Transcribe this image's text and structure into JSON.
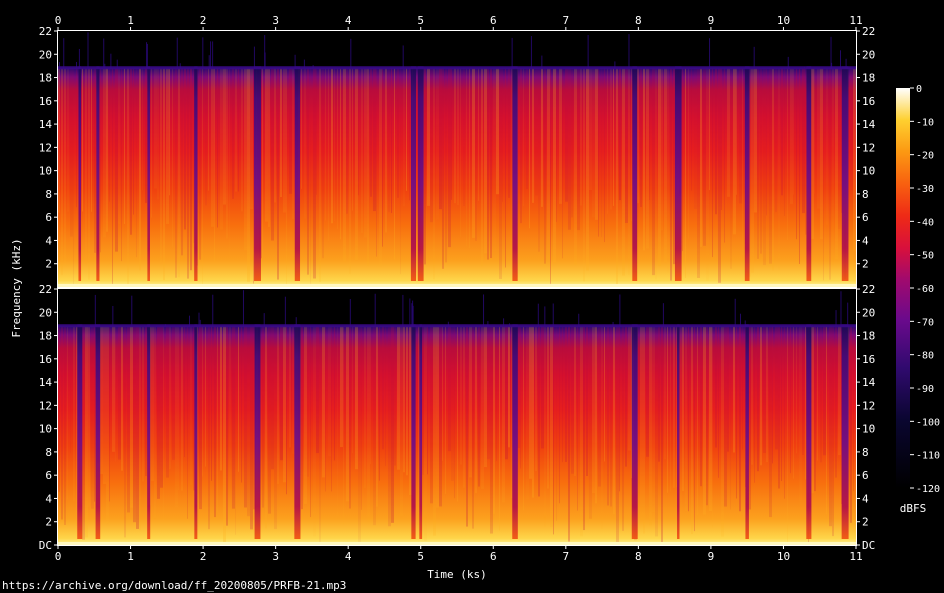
{
  "colors": {
    "background": "#000000",
    "text": "#ffffff"
  },
  "chart_data": {
    "type": "heatmap",
    "title": "",
    "xlabel": "Time (ks)",
    "ylabel": "Frequency (kHz)",
    "xlim": [
      0,
      11
    ],
    "ylim": [
      0,
      22
    ],
    "x_ticks": [
      "0",
      "1",
      "2",
      "3",
      "4",
      "5",
      "6",
      "7",
      "8",
      "9",
      "10",
      "11"
    ],
    "y_ticks_upper": [
      "22",
      "20",
      "18",
      "16",
      "14",
      "12",
      "10",
      "8",
      "6",
      "4",
      "2"
    ],
    "y_ticks_lower": [
      "22",
      "20",
      "18",
      "16",
      "14",
      "12",
      "10",
      "8",
      "6",
      "4",
      "2",
      "DC"
    ],
    "channels": [
      "upper",
      "lower"
    ],
    "frequency_cutoff_khz": 18.8,
    "colorbar": {
      "label": "dBFS",
      "ticks": [
        "0",
        "-10",
        "-20",
        "-30",
        "-40",
        "-50",
        "-60",
        "-70",
        "-80",
        "-90",
        "-100",
        "-110",
        "-120"
      ],
      "range": [
        -120,
        0
      ]
    },
    "low_energy_gaps_ks": [
      0.3,
      0.55,
      1.25,
      1.9,
      2.75,
      3.3,
      4.9,
      5.0,
      6.3,
      7.95,
      8.55,
      9.5,
      10.35,
      10.85
    ]
  },
  "source_url": "https://archive.org/download/ff_20200805/PRFB-21.mp3"
}
